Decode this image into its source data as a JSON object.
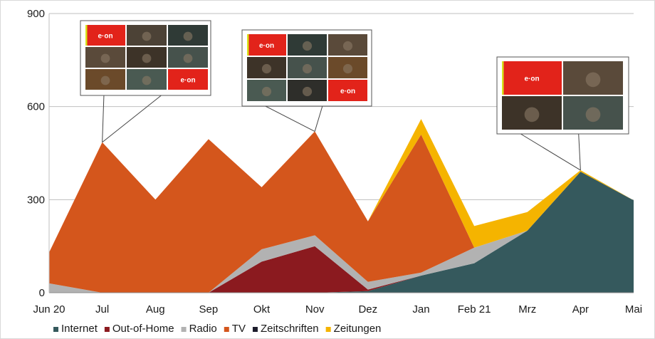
{
  "chart_data": {
    "type": "area",
    "stacked": true,
    "categories": [
      "Jun 20",
      "Jul",
      "Aug",
      "Sep",
      "Okt",
      "Nov",
      "Dez",
      "Jan",
      "Feb 21",
      "Mrz",
      "Apr",
      "Mai"
    ],
    "ylim": [
      0,
      900
    ],
    "yticks": [
      "0",
      "300",
      "600",
      "900"
    ],
    "grid": "horizontal",
    "legend_position": "bottom",
    "series": [
      {
        "name": "Internet",
        "color": "#35595d",
        "values": [
          0,
          0,
          0,
          0,
          0,
          0,
          5,
          55,
          95,
          200,
          390,
          298
        ]
      },
      {
        "name": "Out-of-Home",
        "color": "#8b1a1f",
        "values": [
          0,
          0,
          0,
          0,
          100,
          150,
          5,
          0,
          0,
          0,
          0,
          0
        ]
      },
      {
        "name": "Radio",
        "color": "#b2b2b2",
        "values": [
          30,
          0,
          0,
          0,
          40,
          35,
          25,
          10,
          50,
          0,
          0,
          0
        ]
      },
      {
        "name": "TV",
        "color": "#d4561c",
        "values": [
          100,
          485,
          300,
          495,
          200,
          335,
          195,
          445,
          0,
          0,
          0,
          0
        ]
      },
      {
        "name": "Zeitschriften",
        "color": "#1c1c2c",
        "values": [
          0,
          0,
          0,
          0,
          0,
          0,
          0,
          0,
          0,
          0,
          0,
          0
        ]
      },
      {
        "name": "Zeitungen",
        "color": "#f5b400",
        "values": [
          0,
          0,
          0,
          0,
          0,
          0,
          0,
          50,
          70,
          60,
          5,
          0
        ]
      }
    ]
  },
  "thumbnails": [
    {
      "category_index": 1,
      "logo": "e·on"
    },
    {
      "category_index": 5,
      "logo": "e·on"
    },
    {
      "category_index": 10,
      "logo": "e·on"
    }
  ]
}
